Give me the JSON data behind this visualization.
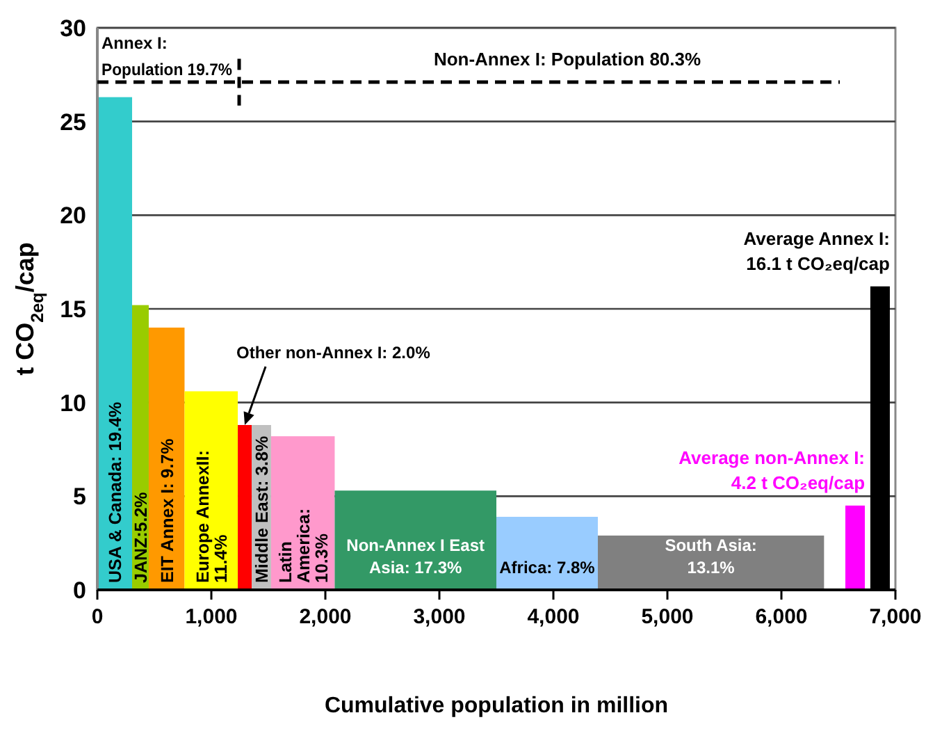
{
  "chart_data": {
    "type": "histogram",
    "ylabel": "t CO$_{2eq}$/cap",
    "xlabel": "Cumulative population in million",
    "bins": [
      0,
      305,
      451,
      765,
      1232,
      1354,
      1524,
      2082,
      3500,
      4390,
      6374,
      6561,
      6732,
      6780,
      6951
    ],
    "values": [
      26.3,
      15.2,
      14.0,
      10.6,
      8.8,
      8.8,
      8.2,
      5.3,
      3.9,
      2.9,
      null,
      4.5,
      null,
      16.2
    ],
    "colors": [
      "#33cccc",
      "#99cc00",
      "#ff9900",
      "#ffff00",
      "#ff0000",
      "#c0c0c0",
      "#ff99cc",
      "#339966",
      "#99ccff",
      "#808080",
      null,
      "#ff00ff",
      null,
      "#000000"
    ],
    "xlim": [
      0,
      7000
    ],
    "ylim": [
      0,
      30
    ],
    "xticks": [
      0,
      {
        "value": 1000,
        "label": "1,000"
      },
      {
        "value": 2000,
        "label": "2,000"
      },
      {
        "value": 3000,
        "label": "3,000"
      },
      {
        "value": 4000,
        "label": "4,000"
      },
      {
        "value": 5000,
        "label": "5,000"
      },
      {
        "value": 6000,
        "label": "6,000"
      },
      {
        "value": 7000,
        "label": "7,000"
      }
    ],
    "yticks": [
      0,
      5,
      10,
      15,
      20,
      25,
      30
    ],
    "grid": "y",
    "ref_lines": [
      {
        "axis": "y",
        "value": 27.1,
        "label": "Non-Annex I: Population 80.3%",
        "line_style": "dashed"
      },
      {
        "axis": "x",
        "value": 1244,
        "label": "Annex I: Population 19.7%",
        "line_style": "dashed"
      }
    ],
    "annotations": [
      "USA & Canada: 19.4%",
      "JANZ:5.2%",
      "EIT Annex I: 9.7%",
      "Europe AnnexII: 11.4%",
      "Middle East: 3.8%",
      "Latin America: 10.3%",
      "Non-Annex I East Asia: 17.3%",
      "Africa: 7.8%",
      "South Asia: 13.1%",
      {
        "text": "Other non-Annex I: 2.0%",
        "x": 1293,
        "y": 8.8
      },
      {
        "text": "Average non-Annex I: 4.2 t CO₂eq/cap",
        "x": 6647,
        "y": 4.5
      },
      {
        "text": "Average Annex I: 16.1 t CO₂eq/cap",
        "x": 6866,
        "y": 16.2
      }
    ]
  }
}
